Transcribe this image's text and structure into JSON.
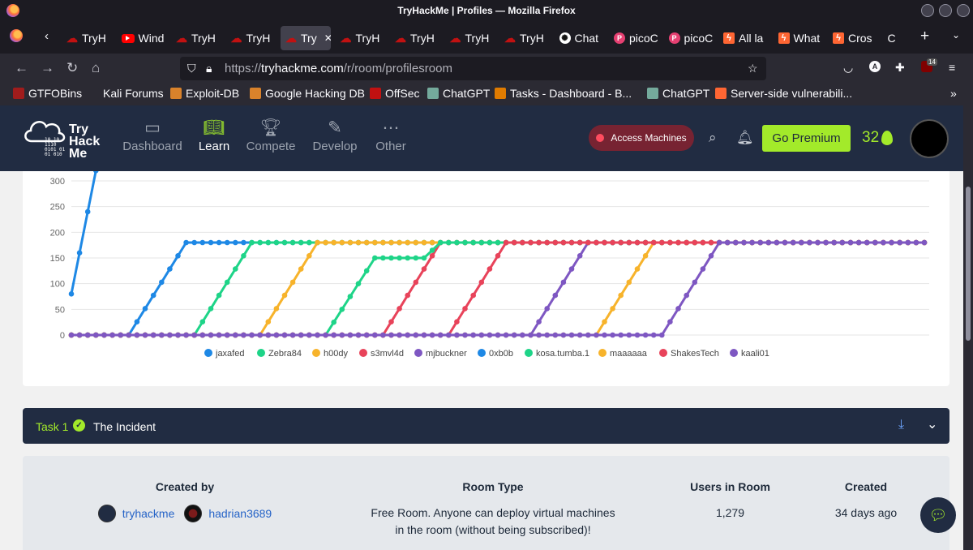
{
  "window": {
    "title": "TryHackMe | Profiles — Mozilla Firefox"
  },
  "tabs": [
    {
      "label": "TryH",
      "favicon": "tryhackme-icon"
    },
    {
      "label": "Wind",
      "favicon": "youtube-icon"
    },
    {
      "label": "TryH",
      "favicon": "tryhackme-icon"
    },
    {
      "label": "TryH",
      "favicon": "tryhackme-icon"
    },
    {
      "label": "Try",
      "favicon": "tryhackme-icon",
      "active": true
    },
    {
      "label": "TryH",
      "favicon": "tryhackme-icon"
    },
    {
      "label": "TryH",
      "favicon": "tryhackme-icon"
    },
    {
      "label": "TryH",
      "favicon": "tryhackme-icon"
    },
    {
      "label": "TryH",
      "favicon": "tryhackme-icon"
    },
    {
      "label": "Chat",
      "favicon": "chatgpt-icon"
    },
    {
      "label": "picoC",
      "favicon": "picoctf-icon"
    },
    {
      "label": "picoC",
      "favicon": "picoctf-icon"
    },
    {
      "label": "All la",
      "favicon": "portswigger-icon"
    },
    {
      "label": "What",
      "favicon": "portswigger-icon"
    },
    {
      "label": "Cros",
      "favicon": "portswigger-icon"
    },
    {
      "label": "C",
      "favicon": "none"
    }
  ],
  "urlbar": {
    "prefix": "https://",
    "host": "tryhackme.com",
    "path": "/r/room/profilesroom"
  },
  "extensions": {
    "badge_count": "14"
  },
  "bookmarks": [
    {
      "label": "GTFOBins",
      "color": "#a01c1c"
    },
    {
      "label": "Kali Forums",
      "color": "#2b2a33"
    },
    {
      "label": "Exploit-DB",
      "color": "#d9822b"
    },
    {
      "label": "Google Hacking DB",
      "color": "#d9822b"
    },
    {
      "label": "OffSec",
      "color": "#c11111"
    },
    {
      "label": "ChatGPT",
      "color": "#74aa9c"
    },
    {
      "label": "Tasks - Dashboard - B...",
      "color": "#e07b00"
    },
    {
      "label": "ChatGPT",
      "color": "#74aa9c"
    },
    {
      "label": "Server-side vulnerabili...",
      "color": "#ff6633"
    }
  ],
  "thm_header": {
    "logo_text": [
      "Try",
      "Hack",
      "Me"
    ],
    "nav": [
      "Dashboard",
      "Learn",
      "Compete",
      "Develop",
      "Other"
    ],
    "access_label": "Access Machines",
    "premium_label": "Go Premium",
    "streak": "32"
  },
  "chart_data": {
    "type": "line",
    "ylim": [
      0,
      300
    ],
    "yticks": [
      "0",
      "50",
      "100",
      "150",
      "200",
      "250",
      "300"
    ],
    "x": [
      0,
      1,
      2,
      3,
      4,
      5,
      6,
      7,
      8,
      9,
      10,
      11,
      12,
      13,
      14,
      15,
      16,
      17,
      18,
      19,
      20,
      21,
      22,
      23,
      24,
      25,
      26,
      27,
      28,
      29,
      30,
      31,
      32,
      33,
      34,
      35,
      36,
      37,
      38,
      39,
      40,
      41,
      42,
      43,
      44,
      45,
      46,
      47,
      48,
      49,
      50,
      51,
      52,
      53,
      54,
      55,
      56,
      57,
      58,
      59,
      60,
      61,
      62,
      63,
      64,
      65,
      66,
      67,
      68,
      69,
      70,
      71,
      72,
      73,
      74,
      75,
      76,
      77,
      78,
      79,
      80,
      81,
      82,
      83,
      84,
      85,
      86,
      87,
      88,
      89,
      90,
      91,
      92,
      93,
      94,
      95,
      96,
      97,
      98,
      99,
      100,
      101,
      102,
      103,
      104
    ],
    "legend_position": "bottom",
    "series": [
      {
        "name": "jaxafed",
        "color": "#1e88e5",
        "start": 7,
        "end": 14,
        "peak": 180,
        "plateau": null
      },
      {
        "name": "Zebra84",
        "color": "#1ed488",
        "start": 15,
        "end": 22,
        "peak": 180,
        "plateau": null
      },
      {
        "name": "h00dy",
        "color": "#f7b32b",
        "start": 23,
        "end": 30,
        "peak": 180,
        "plateau": null
      },
      {
        "name": "s3mvl4d",
        "color": "#e8435a",
        "start": 38,
        "end": 45,
        "peak": 180,
        "plateau": null
      },
      {
        "name": "mjbuckner",
        "color": "#7e57c2",
        "start": 56,
        "end": 63,
        "peak": 180,
        "plateau": null
      },
      {
        "name": "0xb0b",
        "color": "#1e88e5",
        "values_start": [
          80,
          160,
          240,
          320
        ],
        "peak": 320
      },
      {
        "name": "kosa.tumba.1",
        "color": "#1ed488",
        "start": 31,
        "end": 37,
        "peak": 180,
        "plateau": 150
      },
      {
        "name": "maaaaaa",
        "color": "#f7b32b",
        "start": 64,
        "end": 71,
        "peak": 180,
        "plateau": null
      },
      {
        "name": "ShakesTech",
        "color": "#e8435a",
        "start": 46,
        "end": 53,
        "peak": 180,
        "plateau": null
      },
      {
        "name": "kaali01",
        "color": "#7e57c2",
        "start": 72,
        "end": 79,
        "peak": 180,
        "plateau": null
      }
    ]
  },
  "task": {
    "number": "Task 1",
    "title": "The Incident"
  },
  "room_info": {
    "created_by_label": "Created by",
    "creators": [
      "tryhackme",
      "hadrian3689"
    ],
    "room_type_label": "Room Type",
    "room_type_value": [
      "Free Room. Anyone can deploy virtual machines",
      "in the room (without being subscribed)!"
    ],
    "users_label": "Users in Room",
    "users_value": "1,279",
    "created_label": "Created",
    "created_value": "34 days ago"
  }
}
